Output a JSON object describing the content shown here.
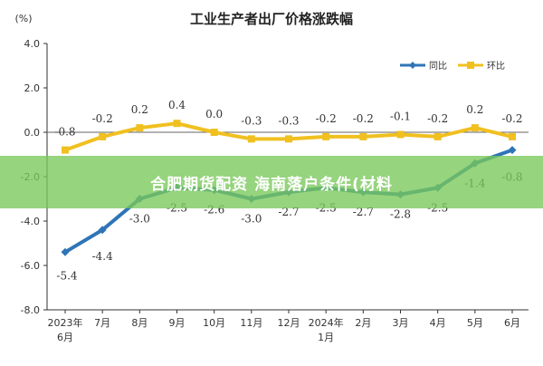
{
  "chart_data": {
    "type": "line",
    "title": "工业生产者出厂价格涨跌幅",
    "unit_label": "(%)",
    "categories": [
      [
        "2023年",
        "6月"
      ],
      [
        "7月"
      ],
      [
        "8月"
      ],
      [
        "9月"
      ],
      [
        "10月"
      ],
      [
        "11月"
      ],
      [
        "12月"
      ],
      [
        "2024年",
        "1月"
      ],
      [
        "2月"
      ],
      [
        "3月"
      ],
      [
        "4月"
      ],
      [
        "5月"
      ],
      [
        "6月"
      ]
    ],
    "ylim": [
      -8.0,
      4.0
    ],
    "yticks": [
      "4.0",
      "2.0",
      "0.0",
      "-2.0",
      "-4.0",
      "-6.0",
      "-8.0"
    ],
    "grid": "none",
    "legend_position": "top-right",
    "series": [
      {
        "name": "同比",
        "color": "#2e75b6",
        "marker": "diamond",
        "values": [
          -5.4,
          -4.4,
          -3.0,
          -2.5,
          -2.6,
          -3.0,
          -2.7,
          -2.5,
          -2.7,
          -2.8,
          -2.5,
          -1.4,
          -0.8
        ],
        "labels": [
          "-5.4",
          "-4.4",
          "-3.0",
          "-2.5",
          "-2.6",
          "-3.0",
          "-2.7",
          "-2.5",
          "-2.7",
          "-2.8",
          "-2.5",
          "-1.4",
          "-0.8"
        ]
      },
      {
        "name": "环比",
        "color": "#f0c020",
        "marker": "square",
        "values": [
          -0.8,
          -0.2,
          0.2,
          0.4,
          0.0,
          -0.3,
          -0.3,
          -0.2,
          -0.2,
          -0.1,
          -0.2,
          0.2,
          -0.2
        ],
        "labels": [
          "-0.8",
          "-0.2",
          "0.2",
          "0.4",
          "0.0",
          "-0.3",
          "-0.3",
          "-0.2",
          "-0.2",
          "-0.1",
          "-0.2",
          "0.2",
          "-0.2"
        ]
      }
    ]
  },
  "overlay_banner": {
    "text": "合肥期货配资 海南落户条件(材料",
    "color": "#78c85a"
  }
}
